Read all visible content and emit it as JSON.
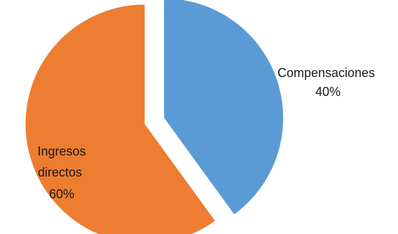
{
  "chart_data": {
    "type": "pie",
    "categories": [
      "Compensaciones",
      "Ingresos directos"
    ],
    "values": [
      40,
      60
    ],
    "series": [
      {
        "values": [
          40,
          60
        ]
      }
    ],
    "slices": [
      {
        "label": "Compensaciones",
        "value": 40,
        "percent_label": "40%",
        "color": "#5b9bd5",
        "exploded": true
      },
      {
        "label": "Ingresos directos",
        "value": 60,
        "percent_label": "60%",
        "color": "#ed7d31",
        "exploded": false
      }
    ],
    "title": "",
    "legend": "none",
    "start_angle": "top",
    "direction": "clockwise"
  }
}
